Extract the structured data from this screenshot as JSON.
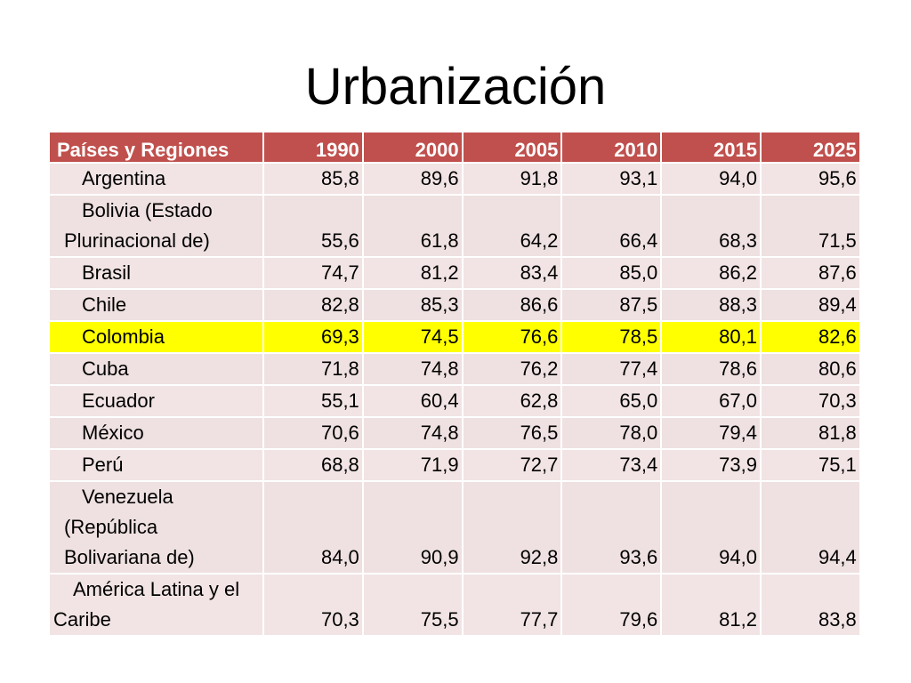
{
  "slide": {
    "title": "Urbanización"
  },
  "table": {
    "header": [
      "Países y Regiones",
      "1990",
      "2000",
      "2005",
      "2010",
      "2015",
      "2025"
    ],
    "highlight_color": "#ffff00",
    "header_color": "#c0504d",
    "row_color": "#f2e4e4",
    "rows": [
      {
        "name": "Argentina",
        "values": [
          "85,8",
          "89,6",
          "91,8",
          "93,1",
          "94,0",
          "95,6"
        ]
      },
      {
        "name": "Bolivia (Estado Plurinacional de)",
        "values": [
          "55,6",
          "61,8",
          "64,2",
          "66,4",
          "68,3",
          "71,5"
        ]
      },
      {
        "name": "Brasil",
        "values": [
          "74,7",
          "81,2",
          "83,4",
          "85,0",
          "86,2",
          "87,6"
        ]
      },
      {
        "name": "Chile",
        "values": [
          "82,8",
          "85,3",
          "86,6",
          "87,5",
          "88,3",
          "89,4"
        ]
      },
      {
        "name": "Colombia",
        "highlighted": true,
        "values": [
          "69,3",
          "74,5",
          "76,6",
          "78,5",
          "80,1",
          "82,6"
        ]
      },
      {
        "name": "Cuba",
        "values": [
          "71,8",
          "74,8",
          "76,2",
          "77,4",
          "78,6",
          "80,6"
        ]
      },
      {
        "name": "Ecuador",
        "values": [
          "55,1",
          "60,4",
          "62,8",
          "65,0",
          "67,0",
          "70,3"
        ]
      },
      {
        "name": "México",
        "values": [
          "70,6",
          "74,8",
          "76,5",
          "78,0",
          "79,4",
          "81,8"
        ]
      },
      {
        "name": "Perú",
        "values": [
          "68,8",
          "71,9",
          "72,7",
          "73,4",
          "73,9",
          "75,1"
        ]
      },
      {
        "name": "Venezuela (República Bolivariana de)",
        "values": [
          "84,0",
          "90,9",
          "92,8",
          "93,6",
          "94,0",
          "94,4"
        ]
      },
      {
        "name": "América Latina y el Caribe",
        "values": [
          "70,3",
          "75,5",
          "77,7",
          "79,6",
          "81,2",
          "83,8"
        ]
      }
    ]
  }
}
